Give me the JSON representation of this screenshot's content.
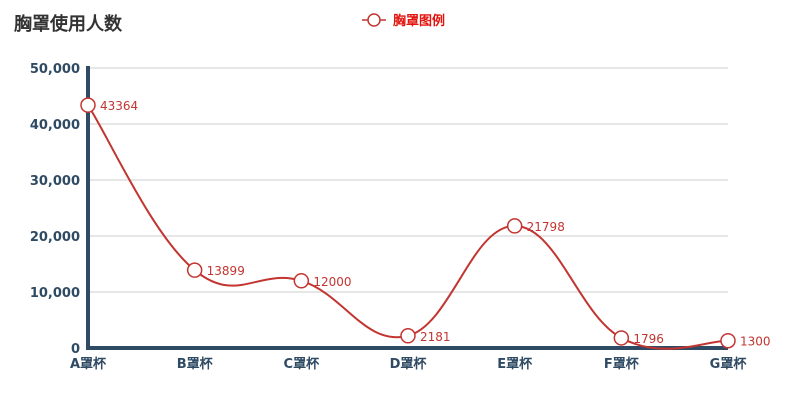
{
  "chart_data": {
    "type": "line",
    "title": "胸罩使用人数",
    "categories": [
      "A罩杯",
      "B罩杯",
      "C罩杯",
      "D罩杯",
      "E罩杯",
      "F罩杯",
      "G罩杯"
    ],
    "series": [
      {
        "name": "胸罩图例",
        "values": [
          43364,
          13899,
          12000,
          2181,
          21798,
          1796,
          1300
        ]
      }
    ],
    "ylim": [
      0,
      50000
    ],
    "yticks": [
      0,
      10000,
      20000,
      30000,
      40000,
      50000
    ],
    "ytick_labels": [
      "0",
      "10,000",
      "20,000",
      "30,000",
      "40,000",
      "50,000"
    ],
    "smooth": true,
    "grid": true,
    "legend_position": "top-center",
    "colors": {
      "series": "#c23531",
      "axis": "#2f4a63",
      "grid": "#cccccc",
      "legend_text": "#e3140f"
    }
  }
}
